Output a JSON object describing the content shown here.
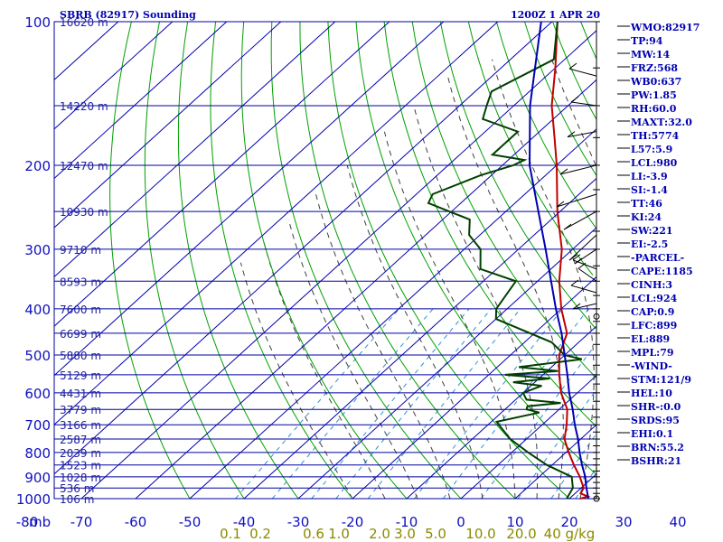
{
  "header": {
    "station": "SBRB (82917) Sounding",
    "time": "1200Z  1 APR 20"
  },
  "chart_data": {
    "type": "line",
    "title": "SBRB (82917) Sounding",
    "xlabel": "",
    "ylabel": "mb",
    "y_scale": "log-pressure (inverted)",
    "xlim": [
      -80,
      40
    ],
    "ylim": [
      1000,
      100
    ],
    "pressure_ticks": [
      "100",
      "200",
      "300",
      "400",
      "500",
      "600",
      "700",
      "800",
      "900",
      "1000"
    ],
    "pressure_values": [
      100,
      200,
      300,
      400,
      500,
      600,
      700,
      800,
      900,
      1000
    ],
    "temp_tick_labels": [
      "-80",
      "-70",
      "-60",
      "-50",
      "-40",
      "-30",
      "-20",
      "-10",
      "0",
      "10",
      "20",
      "30",
      "40"
    ],
    "temp_ticks": [
      -80,
      -70,
      -60,
      -50,
      -40,
      -30,
      -20,
      -10,
      0,
      10,
      20,
      30,
      40
    ],
    "y_unit_label": "mb",
    "mixing_ratio_labels": [
      "0.1",
      "0.2",
      "0.6",
      "1.0",
      "2.0",
      "3.0",
      "5.0",
      "10.0",
      "20.0",
      "40 g/kg"
    ],
    "height_labels": [
      {
        "p": 100,
        "label": "16620 m"
      },
      {
        "p": 150,
        "label": "14220 m"
      },
      {
        "p": 200,
        "label": "12470 m"
      },
      {
        "p": 250,
        "label": "10930 m"
      },
      {
        "p": 300,
        "label": "9710 m"
      },
      {
        "p": 350,
        "label": "8593 m"
      },
      {
        "p": 400,
        "label": "7600 m"
      },
      {
        "p": 450,
        "label": "6699 m"
      },
      {
        "p": 500,
        "label": "5880 m"
      },
      {
        "p": 550,
        "label": "5129 m"
      },
      {
        "p": 600,
        "label": "4431 m"
      },
      {
        "p": 650,
        "label": "3779 m"
      },
      {
        "p": 700,
        "label": "3166 m"
      },
      {
        "p": 750,
        "label": "2587 m"
      },
      {
        "p": 800,
        "label": "2039 m"
      },
      {
        "p": 850,
        "label": "1523 m"
      },
      {
        "p": 900,
        "label": "1028 m"
      },
      {
        "p": 950,
        "label": "536 m"
      },
      {
        "p": 1000,
        "label": "106 m"
      }
    ],
    "series": [
      {
        "name": "temperature",
        "color": "#c00000",
        "points": [
          [
            1000,
            22
          ],
          [
            990,
            23
          ],
          [
            975,
            21
          ],
          [
            950,
            20.5
          ],
          [
            925,
            19
          ],
          [
            900,
            17.5
          ],
          [
            850,
            14
          ],
          [
            800,
            10.5
          ],
          [
            750,
            7
          ],
          [
            700,
            4.5
          ],
          [
            650,
            1.5
          ],
          [
            600,
            -3
          ],
          [
            550,
            -7
          ],
          [
            500,
            -11
          ],
          [
            450,
            -14
          ],
          [
            400,
            -20
          ],
          [
            350,
            -26
          ],
          [
            300,
            -32
          ],
          [
            250,
            -40.5
          ],
          [
            200,
            -50
          ],
          [
            175,
            -56
          ],
          [
            150,
            -63
          ],
          [
            125,
            -70
          ],
          [
            100,
            -79
          ]
        ]
      },
      {
        "name": "dewpoint",
        "color": "#004000",
        "points": [
          [
            1000,
            19.5
          ],
          [
            975,
            19
          ],
          [
            950,
            18.5
          ],
          [
            900,
            16
          ],
          [
            850,
            9
          ],
          [
            800,
            3
          ],
          [
            750,
            -3
          ],
          [
            700,
            -8
          ],
          [
            690,
            -9
          ],
          [
            660,
            -3
          ],
          [
            650,
            -6
          ],
          [
            640,
            -6.5
          ],
          [
            630,
            -1
          ],
          [
            620,
            -8
          ],
          [
            600,
            -10
          ],
          [
            580,
            -8
          ],
          [
            570,
            -14
          ],
          [
            560,
            -8
          ],
          [
            550,
            -17
          ],
          [
            540,
            -8
          ],
          [
            530,
            -16
          ],
          [
            520,
            -11
          ],
          [
            510,
            -6
          ],
          [
            500,
            -10
          ],
          [
            470,
            -15
          ],
          [
            420,
            -30
          ],
          [
            400,
            -32
          ],
          [
            350,
            -34
          ],
          [
            330,
            -43
          ],
          [
            300,
            -47
          ],
          [
            280,
            -52
          ],
          [
            260,
            -55
          ],
          [
            240,
            -66
          ],
          [
            230,
            -67
          ],
          [
            210,
            -62
          ],
          [
            200,
            -58
          ],
          [
            195,
            -57
          ],
          [
            190,
            -64
          ],
          [
            170,
            -64
          ],
          [
            160,
            -73
          ],
          [
            150,
            -75
          ],
          [
            140,
            -77
          ],
          [
            120,
            -72
          ],
          [
            100,
            -79
          ]
        ]
      },
      {
        "name": "parcel",
        "color": "#0000b0",
        "points": [
          [
            1000,
            23.5
          ],
          [
            950,
            21
          ],
          [
            924,
            19.7
          ],
          [
            900,
            18.5
          ],
          [
            850,
            15.5
          ],
          [
            800,
            12.5
          ],
          [
            750,
            9.5
          ],
          [
            700,
            6
          ],
          [
            650,
            2.5
          ],
          [
            600,
            -1.5
          ],
          [
            550,
            -5.5
          ],
          [
            500,
            -10
          ],
          [
            450,
            -15
          ],
          [
            400,
            -21
          ],
          [
            350,
            -27.5
          ],
          [
            300,
            -35
          ],
          [
            250,
            -44
          ],
          [
            200,
            -55
          ],
          [
            150,
            -67
          ],
          [
            100,
            -82
          ]
        ]
      }
    ]
  },
  "indices": [
    "WMO:82917",
    "TP:94",
    "MW:14",
    "FRZ:568",
    "WB0:637",
    "PW:1.85",
    "RH:60.0",
    "MAXT:32.0",
    "TH:5774",
    "L57:5.9",
    "LCL:980",
    "LI:-3.9",
    "SI:-1.4",
    "TT:46",
    "KI:24",
    "SW:221",
    "EI:-2.5",
    "-PARCEL-",
    "CAPE:1185",
    "CINH:3",
    "LCL:924",
    "CAP:0.9",
    "LFC:899",
    "EL:889",
    "MPL:79",
    "-WIND-",
    "STM:121/9",
    "HEL:10",
    "SHR-:0.0",
    "SRDS:95",
    "EHI:0.1",
    "BRN:55.2",
    "BSHR:21"
  ],
  "colors": {
    "isobar": "#0000a0",
    "isotherm": "#0000b0",
    "dry_adiabat": "#00a000",
    "moist_adiabat": "#404040",
    "mixing_ratio": "#3090d0"
  }
}
